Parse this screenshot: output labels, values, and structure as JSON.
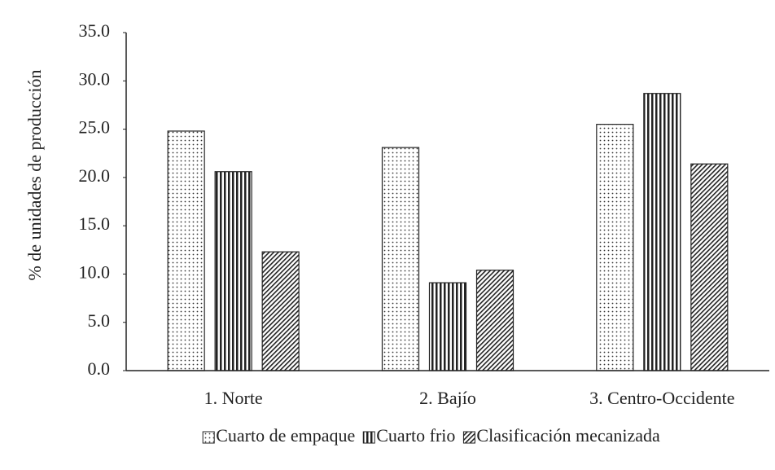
{
  "chart_data": {
    "type": "bar",
    "y_label": "% de unidades de producción",
    "categories": [
      "1. Norte",
      "2. Bajío",
      "3. Centro-Occidente"
    ],
    "series": [
      {
        "name": "Cuarto de empaque",
        "color": "#222222",
        "pattern": "dots",
        "values": [
          24.8,
          23.1,
          25.5
        ]
      },
      {
        "name": "Cuarto frio",
        "color": "#222222",
        "pattern": "vertical",
        "values": [
          20.6,
          9.1,
          28.7
        ]
      },
      {
        "name": "Clasificación mecanizada",
        "color": "#222222",
        "pattern": "diagonal",
        "values": [
          12.3,
          10.4,
          21.4
        ]
      }
    ],
    "ylim": [
      0,
      35
    ],
    "yticks": [
      {
        "value": 0,
        "label": "0.0"
      },
      {
        "value": 5,
        "label": "5.0"
      },
      {
        "value": 10,
        "label": "10.0"
      },
      {
        "value": 15,
        "label": "15.0"
      },
      {
        "value": 20,
        "label": "20.0"
      },
      {
        "value": 25,
        "label": "25.0"
      },
      {
        "value": 30,
        "label": "30.0"
      },
      {
        "value": 35,
        "label": "35.0"
      }
    ],
    "grid": false,
    "legend": "bottom"
  }
}
